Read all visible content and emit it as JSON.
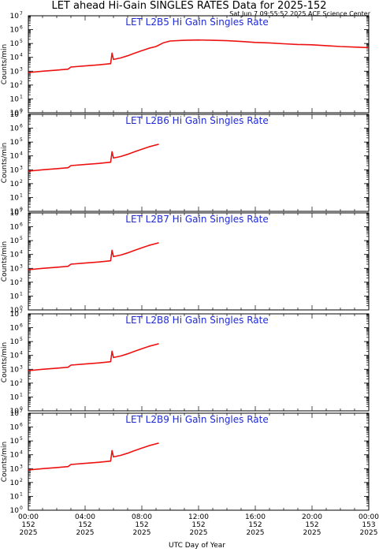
{
  "figure": {
    "title": "LET ahead Hi-Gain SINGLES RATES Data for 2025-152",
    "subtitle": "Sat Jun  7 09:55:52 2025 ACE Science Center",
    "xlabel": "UTC Day of Year"
  },
  "colors": {
    "series": "#ee1111",
    "panel_title": "#1f2bd6",
    "axis": "#000000"
  },
  "chart_data": [
    {
      "type": "line",
      "title": "LET L2B5 Hi Gain Singles Rate",
      "ylabel": "Counts/min",
      "yscale": "log",
      "ylim": [
        1,
        10000000
      ],
      "xlim": [
        0,
        24
      ],
      "series": [
        {
          "x": [
            0,
            1,
            2,
            2.8,
            3,
            4,
            5,
            5.8,
            5.9,
            6,
            6.5,
            7,
            7.5,
            8,
            8.5,
            9,
            9.5,
            10,
            11,
            12,
            13,
            14,
            15,
            16,
            17,
            18,
            19,
            20,
            21,
            22,
            23,
            24
          ],
          "values": [
            800,
            1000,
            1200,
            1400,
            2000,
            2400,
            2900,
            3500,
            20000,
            7000,
            9000,
            13000,
            20000,
            30000,
            45000,
            60000,
            110000,
            150000,
            170000,
            180000,
            170000,
            160000,
            140000,
            120000,
            110000,
            95000,
            85000,
            80000,
            70000,
            60000,
            55000,
            50000
          ]
        }
      ]
    },
    {
      "type": "line",
      "title": "LET L2B6 Hi Gain Singles Rate",
      "ylabel": "Counts/min",
      "yscale": "log",
      "ylim": [
        1,
        10000000
      ],
      "xlim": [
        0,
        24
      ],
      "series": [
        {
          "x": [
            0,
            1,
            2,
            2.8,
            3,
            4,
            5,
            5.8,
            5.9,
            6,
            6.5,
            7,
            7.5,
            8,
            8.5,
            9.2
          ],
          "values": [
            800,
            1000,
            1200,
            1400,
            2000,
            2400,
            2900,
            3500,
            20000,
            7000,
            9000,
            13000,
            20000,
            30000,
            45000,
            70000
          ]
        }
      ]
    },
    {
      "type": "line",
      "title": "LET L2B7 Hi Gain Singles Rate",
      "ylabel": "Counts/min",
      "yscale": "log",
      "ylim": [
        1,
        10000000
      ],
      "xlim": [
        0,
        24
      ],
      "series": [
        {
          "x": [
            0,
            1,
            2,
            2.8,
            3,
            4,
            5,
            5.8,
            5.9,
            6,
            6.5,
            7,
            7.5,
            8,
            8.5,
            9.2
          ],
          "values": [
            800,
            1000,
            1200,
            1400,
            2000,
            2400,
            2900,
            3500,
            20000,
            7000,
            9000,
            13000,
            20000,
            30000,
            45000,
            70000
          ]
        }
      ]
    },
    {
      "type": "line",
      "title": "LET L2B8 Hi Gain Singles Rate",
      "ylabel": "Counts/min",
      "yscale": "log",
      "ylim": [
        1,
        10000000
      ],
      "xlim": [
        0,
        24
      ],
      "series": [
        {
          "x": [
            0,
            1,
            2,
            2.8,
            3,
            4,
            5,
            5.8,
            5.9,
            6,
            6.5,
            7,
            7.5,
            8,
            8.5,
            9.2
          ],
          "values": [
            800,
            1000,
            1200,
            1400,
            2000,
            2400,
            2900,
            3500,
            20000,
            7000,
            9000,
            13000,
            20000,
            30000,
            45000,
            70000
          ]
        }
      ]
    },
    {
      "type": "line",
      "title": "LET L2B9 Hi Gain Singles Rate",
      "ylabel": "Counts/min",
      "yscale": "log",
      "ylim": [
        1,
        10000000
      ],
      "xlim": [
        0,
        24
      ],
      "series": [
        {
          "x": [
            0,
            1,
            2,
            2.8,
            3,
            4,
            5,
            5.8,
            5.9,
            6,
            6.5,
            7,
            7.5,
            8,
            8.5,
            9.2
          ],
          "values": [
            800,
            1000,
            1200,
            1400,
            2000,
            2400,
            2900,
            3500,
            20000,
            7000,
            9000,
            13000,
            20000,
            30000,
            45000,
            70000
          ]
        }
      ]
    }
  ],
  "x_ticks": [
    {
      "value": 0,
      "time": "00:00",
      "doy": "152",
      "year": "2025"
    },
    {
      "value": 4,
      "time": "04:00",
      "doy": "152",
      "year": "2025"
    },
    {
      "value": 8,
      "time": "08:00",
      "doy": "152",
      "year": "2025"
    },
    {
      "value": 12,
      "time": "12:00",
      "doy": "152",
      "year": "2025"
    },
    {
      "value": 16,
      "time": "16:00",
      "doy": "152",
      "year": "2025"
    },
    {
      "value": 20,
      "time": "20:00",
      "doy": "152",
      "year": "2025"
    },
    {
      "value": 24,
      "time": "00:00",
      "doy": "153",
      "year": "2025"
    }
  ],
  "y_ticks": [
    {
      "base": "10",
      "exp": "0"
    },
    {
      "base": "10",
      "exp": "1"
    },
    {
      "base": "10",
      "exp": "2"
    },
    {
      "base": "10",
      "exp": "3"
    },
    {
      "base": "10",
      "exp": "4"
    },
    {
      "base": "10",
      "exp": "5"
    },
    {
      "base": "10",
      "exp": "6"
    },
    {
      "base": "10",
      "exp": "7"
    }
  ]
}
